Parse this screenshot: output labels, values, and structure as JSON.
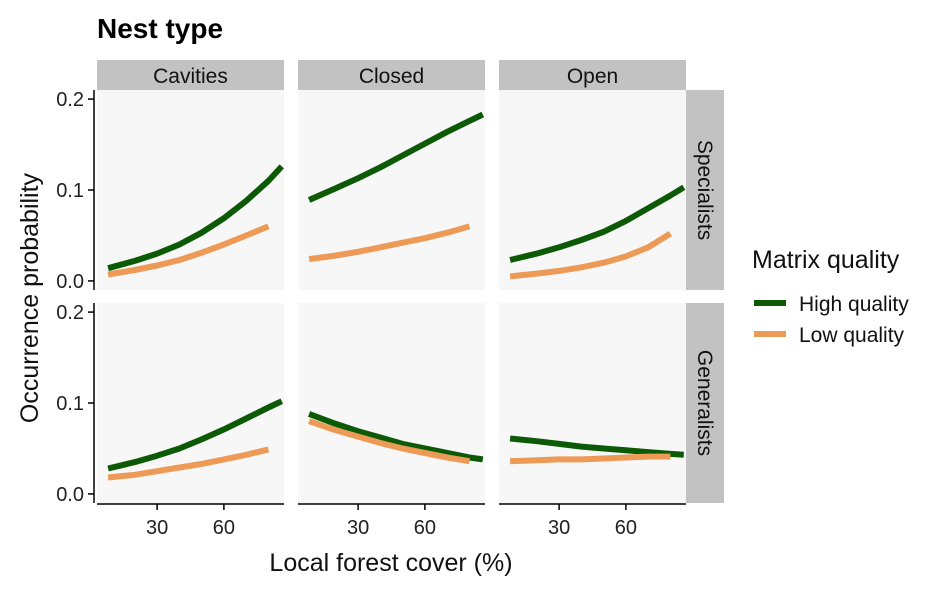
{
  "chart_data": {
    "type": "line",
    "title": "Nest type",
    "xlabel": "Local forest cover (%)",
    "ylabel": "Occurrence probability",
    "xlim": [
      3,
      87
    ],
    "ylim": [
      -0.01,
      0.21
    ],
    "xticks": [
      30,
      60
    ],
    "yticks": [
      0.0,
      0.1,
      0.2
    ],
    "ytick_labels": [
      "0.0",
      "0.1",
      "0.2"
    ],
    "col_facets": [
      "Cavities",
      "Closed",
      "Open"
    ],
    "row_facets": [
      "Specialists",
      "Generalists"
    ],
    "legend": {
      "title": "Matrix quality",
      "position": "right",
      "items": [
        "High quality",
        "Low quality"
      ]
    },
    "colors": {
      "High quality": "#0d5a06",
      "Low quality": "#ee9a57"
    },
    "panels": [
      {
        "row": "Specialists",
        "col": "Cavities",
        "series": [
          {
            "name": "High quality",
            "x": [
              8,
              20,
              30,
              40,
              50,
              60,
              70,
              80,
              86
            ],
            "y": [
              0.014,
              0.022,
              0.03,
              0.04,
              0.053,
              0.069,
              0.088,
              0.11,
              0.126
            ]
          },
          {
            "name": "Low quality",
            "x": [
              8,
              20,
              30,
              40,
              50,
              60,
              70,
              80
            ],
            "y": [
              0.007,
              0.012,
              0.017,
              0.023,
              0.031,
              0.04,
              0.05,
              0.06
            ]
          }
        ]
      },
      {
        "row": "Specialists",
        "col": "Closed",
        "series": [
          {
            "name": "High quality",
            "x": [
              8,
              20,
              30,
              40,
              50,
              60,
              70,
              80,
              86
            ],
            "y": [
              0.089,
              0.102,
              0.113,
              0.125,
              0.138,
              0.151,
              0.164,
              0.176,
              0.183
            ]
          },
          {
            "name": "Low quality",
            "x": [
              8,
              20,
              30,
              40,
              50,
              60,
              70,
              80
            ],
            "y": [
              0.024,
              0.028,
              0.032,
              0.037,
              0.042,
              0.047,
              0.053,
              0.06
            ]
          }
        ]
      },
      {
        "row": "Specialists",
        "col": "Open",
        "series": [
          {
            "name": "High quality",
            "x": [
              8,
              20,
              30,
              40,
              50,
              60,
              70,
              80,
              86
            ],
            "y": [
              0.023,
              0.03,
              0.037,
              0.045,
              0.054,
              0.066,
              0.08,
              0.094,
              0.103
            ]
          },
          {
            "name": "Low quality",
            "x": [
              8,
              20,
              30,
              40,
              50,
              60,
              70,
              80
            ],
            "y": [
              0.005,
              0.008,
              0.011,
              0.015,
              0.02,
              0.027,
              0.037,
              0.052
            ]
          }
        ]
      },
      {
        "row": "Generalists",
        "col": "Cavities",
        "series": [
          {
            "name": "High quality",
            "x": [
              8,
              20,
              30,
              40,
              50,
              60,
              70,
              80,
              86
            ],
            "y": [
              0.028,
              0.035,
              0.042,
              0.05,
              0.06,
              0.071,
              0.083,
              0.095,
              0.102
            ]
          },
          {
            "name": "Low quality",
            "x": [
              8,
              20,
              30,
              40,
              50,
              60,
              70,
              80
            ],
            "y": [
              0.018,
              0.021,
              0.025,
              0.029,
              0.033,
              0.038,
              0.043,
              0.049
            ]
          }
        ]
      },
      {
        "row": "Generalists",
        "col": "Closed",
        "series": [
          {
            "name": "High quality",
            "x": [
              8,
              20,
              30,
              40,
              50,
              60,
              70,
              80,
              86
            ],
            "y": [
              0.088,
              0.077,
              0.069,
              0.062,
              0.055,
              0.05,
              0.045,
              0.04,
              0.038
            ]
          },
          {
            "name": "Low quality",
            "x": [
              8,
              20,
              30,
              40,
              50,
              60,
              70,
              80
            ],
            "y": [
              0.08,
              0.07,
              0.063,
              0.056,
              0.05,
              0.045,
              0.04,
              0.036
            ]
          }
        ]
      },
      {
        "row": "Generalists",
        "col": "Open",
        "series": [
          {
            "name": "High quality",
            "x": [
              8,
              20,
              30,
              40,
              50,
              60,
              70,
              80,
              86
            ],
            "y": [
              0.061,
              0.058,
              0.055,
              0.052,
              0.05,
              0.048,
              0.046,
              0.044,
              0.043
            ]
          },
          {
            "name": "Low quality",
            "x": [
              8,
              20,
              30,
              40,
              50,
              60,
              70,
              80
            ],
            "y": [
              0.036,
              0.037,
              0.038,
              0.038,
              0.039,
              0.04,
              0.041,
              0.041
            ]
          }
        ]
      }
    ]
  }
}
